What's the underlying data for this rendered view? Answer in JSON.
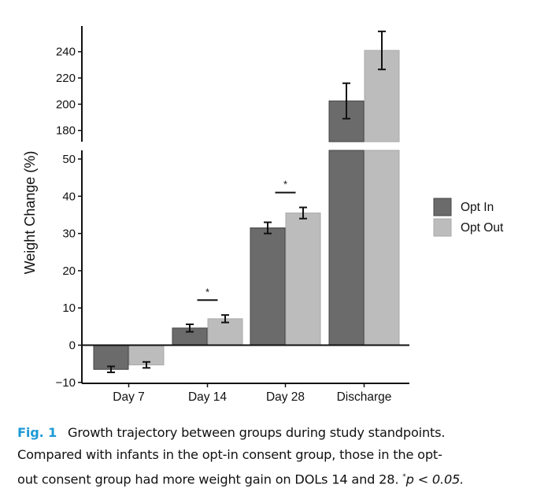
{
  "chart_data": {
    "type": "bar",
    "title": "",
    "xlabel": "",
    "ylabel": "Weight Change (%)",
    "categories": [
      "Day 7",
      "Day 14",
      "Day 28",
      "Discharge"
    ],
    "series": [
      {
        "name": "Opt In",
        "color": "#6b6b6b",
        "values": [
          -6.5,
          4.6,
          31.5,
          202.5
        ],
        "errors": [
          0.8,
          1.0,
          1.5,
          13.5
        ]
      },
      {
        "name": "Opt Out",
        "color": "#bcbcbc",
        "values": [
          -5.3,
          7.1,
          35.5,
          241
        ],
        "errors": [
          0.8,
          1.0,
          1.5,
          14.5
        ]
      }
    ],
    "y_axis_break": true,
    "lower_ylim": [
      -10,
      53
    ],
    "upper_ylim": [
      170,
      255
    ],
    "lower_ticks": [
      "-10",
      "0",
      "10",
      "20",
      "30",
      "40",
      "50"
    ],
    "upper_ticks": [
      "180",
      "200",
      "220",
      "240"
    ],
    "significance": [
      {
        "category": "Day 14",
        "label": "*"
      },
      {
        "category": "Day 28",
        "label": "*"
      }
    ],
    "legend_position": "right",
    "grid": false
  },
  "caption": {
    "fig_label": "Fig. 1",
    "line1": "Growth trajectory between groups during study standpoints.",
    "line2": "Compared with infants in the opt-in consent group, those in the opt-",
    "line3_pre": "out consent group had more weight gain on DOLs 14 and 28. ",
    "star": "*",
    "line3_post": "p < 0.05."
  }
}
